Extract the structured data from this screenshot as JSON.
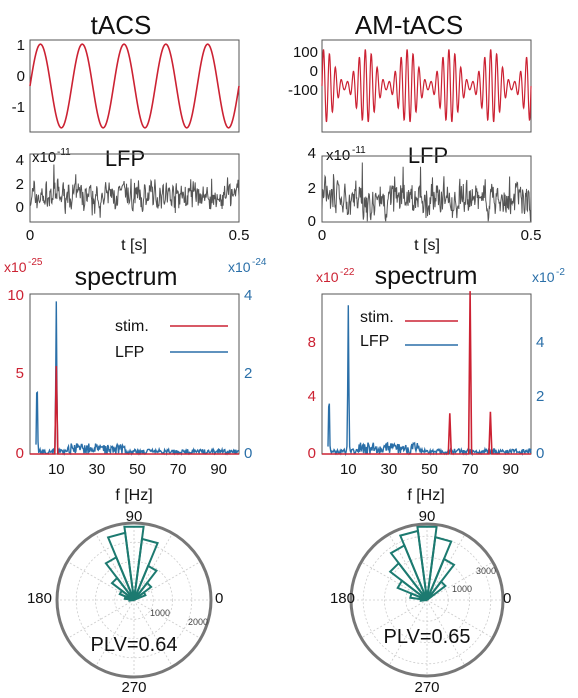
{
  "colors": {
    "stim": "#cc2233",
    "lfp_spectrum": "#2a6fa8",
    "lfp_trace": "#555555",
    "polar": "#1c7a70",
    "axis": "#555555",
    "grid": "#cccccc",
    "text": "#111111"
  },
  "columns": [
    {
      "title": "tACS",
      "stim": {
        "yticks": [
          "0",
          "1",
          "-1"
        ],
        "carrier_cycles": 5,
        "am": false
      },
      "lfp": {
        "title": "LFP",
        "yscale": "x10",
        "yscale_exp": "-11",
        "yticks": [
          "4",
          "2",
          "0"
        ],
        "xticks": [
          "0",
          "0.5"
        ],
        "xlabel": "t [s]",
        "seed": 7
      },
      "spectrum": {
        "title": "spectrum",
        "left_scale": "x10",
        "left_exp": "-25",
        "right_scale": "x10",
        "right_exp": "-24",
        "left_ticks": [
          "10",
          "5",
          "0"
        ],
        "right_ticks": [
          "4",
          "2",
          "0"
        ],
        "xticks": [
          "10",
          "30",
          "50",
          "70",
          "90"
        ],
        "xlabel": "f [Hz]",
        "legend": [
          "stim.",
          "LFP"
        ]
      },
      "polar": {
        "angle_labels": [
          "90",
          "180",
          "0",
          "270"
        ],
        "radial_labels": [
          "1000",
          "2000"
        ],
        "annotation": "PLV=0.64"
      }
    },
    {
      "title": "AM-tACS",
      "stim": {
        "yticks": [
          "100",
          "0",
          "-100"
        ],
        "carrier_cycles": 35,
        "am": true
      },
      "lfp": {
        "title": "LFP",
        "yscale": "x10",
        "yscale_exp": "-11",
        "yticks": [
          "4",
          "2",
          "0"
        ],
        "xticks": [
          "0",
          "0.5"
        ],
        "xlabel": "t [s]",
        "seed": 13
      },
      "spectrum": {
        "title": "spectrum",
        "left_scale": "x10",
        "left_exp": "-22",
        "right_scale": "x10",
        "right_exp": "-2",
        "left_ticks": [
          "8",
          "4",
          "0"
        ],
        "right_ticks": [
          "4",
          "2",
          "0"
        ],
        "xticks": [
          "10",
          "30",
          "50",
          "70",
          "90"
        ],
        "xlabel": "f [Hz]",
        "legend": [
          "stim.",
          "LFP"
        ]
      },
      "polar": {
        "angle_labels": [
          "90",
          "180",
          "0",
          "270"
        ],
        "radial_labels": [
          "1000",
          "3000"
        ],
        "annotation": "PLV=0.65"
      }
    }
  ],
  "chart_data": [
    {
      "type": "line",
      "panel": "tACS stimulation",
      "title": "tACS",
      "x_range": [
        0,
        0.5
      ],
      "ylim": [
        -1,
        1
      ],
      "description_values": {
        "cycles_shown": 5,
        "amplitude": 1
      }
    },
    {
      "type": "line",
      "panel": "tACS LFP",
      "title": "LFP",
      "xlabel": "t [s]",
      "x_range": [
        0,
        0.5
      ],
      "ylim": [
        -0.5,
        4.5
      ],
      "y_multiplier": "x10^-11",
      "typical_range": [
        0,
        3
      ]
    },
    {
      "type": "line",
      "panel": "AM-tACS stimulation",
      "title": "AM-tACS",
      "x_range": [
        0,
        0.5
      ],
      "ylim": [
        -120,
        120
      ],
      "description_values": {
        "envelope_peaks": 5,
        "max_amplitude": 100
      }
    },
    {
      "type": "line",
      "panel": "AM-tACS LFP",
      "title": "LFP",
      "xlabel": "t [s]",
      "x_range": [
        0,
        0.5
      ],
      "ylim": [
        0,
        4
      ],
      "y_multiplier": "x10^-11",
      "typical_range": [
        0,
        3
      ]
    },
    {
      "type": "line",
      "panel": "tACS spectrum",
      "title": "spectrum",
      "xlabel": "f [Hz]",
      "xlim": [
        0,
        100
      ],
      "series": [
        {
          "name": "stim.",
          "axis": "left",
          "multiplier": "x10^-25",
          "ylim": [
            0,
            10
          ],
          "peaks": [
            {
              "f": 10,
              "value": 5.5
            }
          ]
        },
        {
          "name": "LFP",
          "axis": "right",
          "multiplier": "x10^-24",
          "ylim": [
            0,
            4
          ],
          "peaks": [
            {
              "f": 0.5,
              "value": 1.8
            },
            {
              "f": 10,
              "value": 3.8
            }
          ],
          "baseline": 0.1
        }
      ]
    },
    {
      "type": "line",
      "panel": "AM-tACS spectrum",
      "title": "spectrum",
      "xlabel": "f [Hz]",
      "xlim": [
        0,
        100
      ],
      "series": [
        {
          "name": "stim.",
          "axis": "left",
          "multiplier": "x10^-22",
          "ylim": [
            0,
            11
          ],
          "peaks": [
            {
              "f": 60,
              "value": 2.8
            },
            {
              "f": 70,
              "value": 11.2
            },
            {
              "f": 80,
              "value": 2.9
            }
          ]
        },
        {
          "name": "LFP",
          "axis": "right",
          "ylim": [
            0,
            5.6
          ],
          "peaks": [
            {
              "f": 0.5,
              "value": 2.0
            },
            {
              "f": 10,
              "value": 5.2
            }
          ],
          "baseline": 0.15
        }
      ]
    },
    {
      "type": "polar_histogram",
      "panel": "tACS phase histogram",
      "annotation": "PLV=0.64",
      "r_max": 2500,
      "bins_deg": [
        30,
        45,
        60,
        75,
        90,
        105,
        120,
        135,
        150,
        165,
        180
      ],
      "counts": [
        400,
        700,
        1200,
        2000,
        2400,
        2200,
        1500,
        900,
        500,
        300,
        150
      ]
    },
    {
      "type": "polar_histogram",
      "panel": "AM-tACS phase histogram",
      "annotation": "PLV=0.65",
      "r_max": 3600,
      "bins_deg": [
        45,
        60,
        75,
        90,
        105,
        120,
        135,
        150,
        165,
        180
      ],
      "counts": [
        1100,
        2100,
        3000,
        3500,
        3300,
        2800,
        2200,
        1500,
        800,
        300
      ]
    }
  ]
}
